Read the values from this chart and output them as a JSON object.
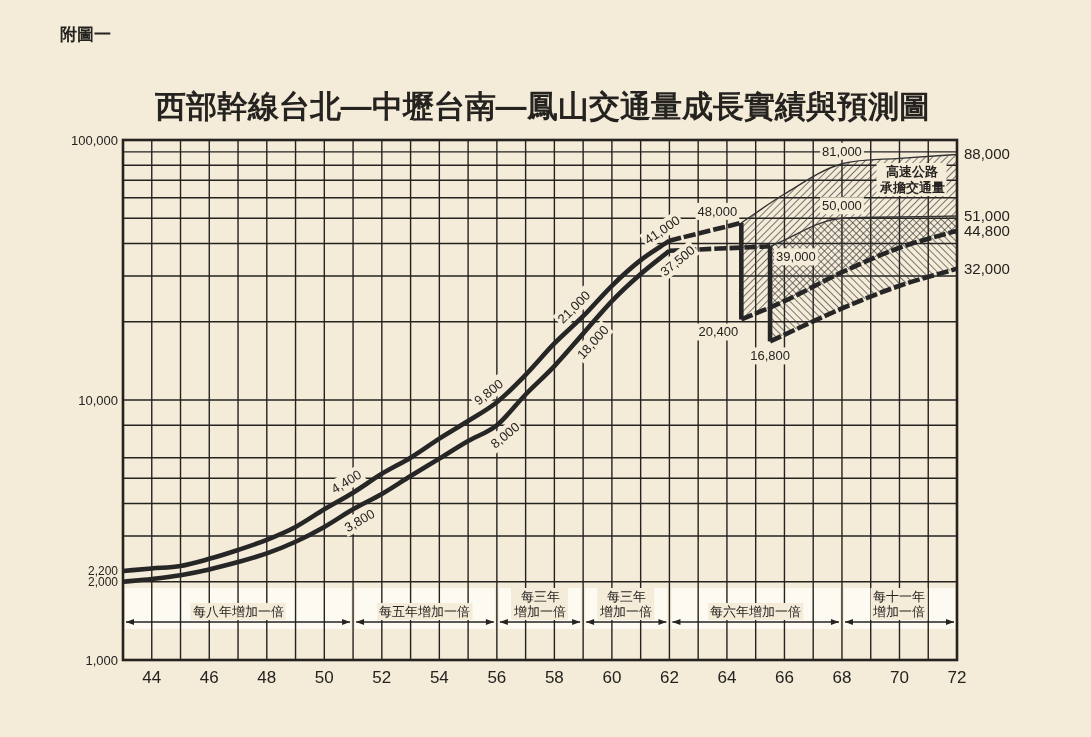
{
  "chart_data": {
    "type": "line",
    "title": "西部幹線台北—中壢台南—鳳山交通量成長實績與預測圖",
    "annotations": [
      "附圖一",
      "高速公路承擔交通量"
    ],
    "xlim": [
      43,
      72
    ],
    "xticks": [
      {
        "value": 43,
        "label": null
      },
      44,
      {
        "value": 45,
        "label": null
      },
      46,
      {
        "value": 47,
        "label": null
      },
      48,
      {
        "value": 49,
        "label": null
      },
      50,
      {
        "value": 51,
        "label": null
      },
      52,
      {
        "value": 53,
        "label": null
      },
      54,
      {
        "value": 55,
        "label": null
      },
      56,
      {
        "value": 57,
        "label": null
      },
      58,
      {
        "value": 59,
        "label": null
      },
      60,
      {
        "value": 61,
        "label": null
      },
      62,
      {
        "value": 63,
        "label": null
      },
      64,
      {
        "value": 65,
        "label": null
      },
      66,
      {
        "value": 67,
        "label": null
      },
      68,
      {
        "value": 69,
        "label": null
      },
      70,
      {
        "value": 71,
        "label": null
      },
      72
    ],
    "ylim": [
      1000,
      100000
    ],
    "log": true,
    "yticks": [
      {
        "value": 1000,
        "label": "1,000"
      },
      {
        "value": 2000,
        "label": null
      },
      {
        "value": 3000,
        "label": null
      },
      {
        "value": 4000,
        "label": null
      },
      {
        "value": 5000,
        "label": null
      },
      {
        "value": 6000,
        "label": null
      },
      {
        "value": 8000,
        "label": null
      },
      {
        "value": 10000,
        "label": "10,000"
      },
      {
        "value": 20000,
        "label": null
      },
      {
        "value": 30000,
        "label": null
      },
      {
        "value": 40000,
        "label": null
      },
      {
        "value": 50000,
        "label": null
      },
      {
        "value": 60000,
        "label": null
      },
      {
        "value": 70000,
        "label": null
      },
      {
        "value": 80000,
        "label": null
      },
      {
        "value": 90000,
        "label": null
      },
      {
        "value": 100000,
        "label": "100,000"
      }
    ],
    "grid": true,
    "bands": [
      {
        "axis": "x",
        "from": 43,
        "to": 51,
        "label": "每八年增加一倍",
        "color": "#fdfaf2"
      },
      {
        "axis": "x",
        "from": 51,
        "to": 56,
        "label": "每五年增加一倍",
        "color": "#fdfaf2"
      },
      {
        "axis": "x",
        "from": 56,
        "to": 59,
        "label": "每三年增加一倍",
        "color": "#fdfaf2"
      },
      {
        "axis": "x",
        "from": 59,
        "to": 62,
        "label": "每三年增加一倍",
        "color": "#fdfaf2"
      },
      {
        "axis": "x",
        "from": 62,
        "to": 68,
        "label": "每六年增加一倍",
        "color": "#fdfaf2"
      },
      {
        "axis": "x",
        "from": 68,
        "to": 72,
        "label": "每十一年增加一倍",
        "color": "#fdfaf2"
      }
    ],
    "series": [
      {
        "x": [
          43,
          44,
          45,
          46,
          47,
          48,
          49,
          50,
          51,
          52,
          53,
          54,
          55,
          56,
          57,
          58,
          59,
          60,
          61,
          62
        ],
        "values": [
          2200,
          2250,
          2300,
          2450,
          2650,
          2900,
          3250,
          3800,
          4400,
          5200,
          6000,
          7100,
          8300,
          9800,
          12500,
          16500,
          21000,
          27500,
          34500,
          41000
        ],
        "value_labels": [
          "2,200",
          null,
          null,
          null,
          null,
          null,
          null,
          null,
          "4,400",
          null,
          null,
          null,
          null,
          "9,800",
          null,
          null,
          "21,000",
          null,
          null,
          "41,000"
        ],
        "color": "#262626",
        "line_style": "solid"
      },
      {
        "x": [
          43,
          44,
          45,
          46,
          47,
          48,
          49,
          50,
          51,
          52,
          53,
          54,
          55,
          56,
          57,
          58,
          59,
          60,
          61,
          62
        ],
        "values": [
          2000,
          2050,
          2120,
          2230,
          2380,
          2570,
          2850,
          3250,
          3800,
          4350,
          5100,
          5950,
          6950,
          8000,
          10500,
          13500,
          18000,
          24000,
          30500,
          37500
        ],
        "value_labels": [
          "2,000",
          null,
          null,
          null,
          null,
          null,
          null,
          null,
          "3,800",
          null,
          null,
          null,
          null,
          "8,000",
          null,
          null,
          "18,000",
          null,
          null,
          "37,500"
        ],
        "color": "#262626",
        "line_style": "solid"
      },
      {
        "x": [
          62,
          64.5
        ],
        "values": [
          41000,
          48000
        ],
        "value_labels": [
          null,
          "48,000"
        ],
        "color": "#262626",
        "line_style": "dashed"
      },
      {
        "x": [
          62,
          65.5
        ],
        "values": [
          37500,
          39000
        ],
        "value_labels": [
          null,
          "39,000"
        ],
        "color": "#262626",
        "line_style": "dashed"
      },
      {
        "x": [
          64.5,
          66,
          68,
          70,
          72
        ],
        "values": [
          48000,
          62000,
          81000,
          85000,
          88000
        ],
        "upper": [
          48000,
          62000,
          81000,
          85000,
          88000
        ],
        "lower": [
          20400,
          24000,
          31000,
          38500,
          44800
        ],
        "value_labels": [
          null,
          null,
          "81,000",
          null,
          "88,000"
        ],
        "color": "#333333",
        "line_style": "solid"
      },
      {
        "x": [
          65.5,
          68,
          70,
          72
        ],
        "values": [
          39000,
          50000,
          50600,
          51000
        ],
        "upper": [
          39000,
          50000,
          50600,
          51000
        ],
        "lower": [
          16800,
          22500,
          27500,
          32000
        ],
        "value_labels": [
          null,
          "50,000",
          null,
          "51,000"
        ],
        "color": "#333333",
        "line_style": "solid"
      },
      {
        "x": [
          64.5,
          64.5
        ],
        "values": [
          48000,
          20400
        ],
        "color": "#262626",
        "line_style": "solid"
      },
      {
        "x": [
          65.5,
          65.5
        ],
        "values": [
          39000,
          16800
        ],
        "color": "#262626",
        "line_style": "solid"
      },
      {
        "x": [
          64.5,
          66,
          68,
          70,
          72
        ],
        "values": [
          20400,
          24000,
          31000,
          38500,
          44800
        ],
        "value_labels": [
          "20,400",
          null,
          null,
          null,
          "44,800"
        ],
        "color": "#262626",
        "line_style": "dashed"
      },
      {
        "x": [
          65.5,
          68,
          70,
          72
        ],
        "values": [
          16800,
          22500,
          27500,
          32000
        ],
        "value_labels": [
          "16,800",
          null,
          null,
          "32,000"
        ],
        "color": "#262626",
        "line_style": "dashed"
      }
    ]
  }
}
